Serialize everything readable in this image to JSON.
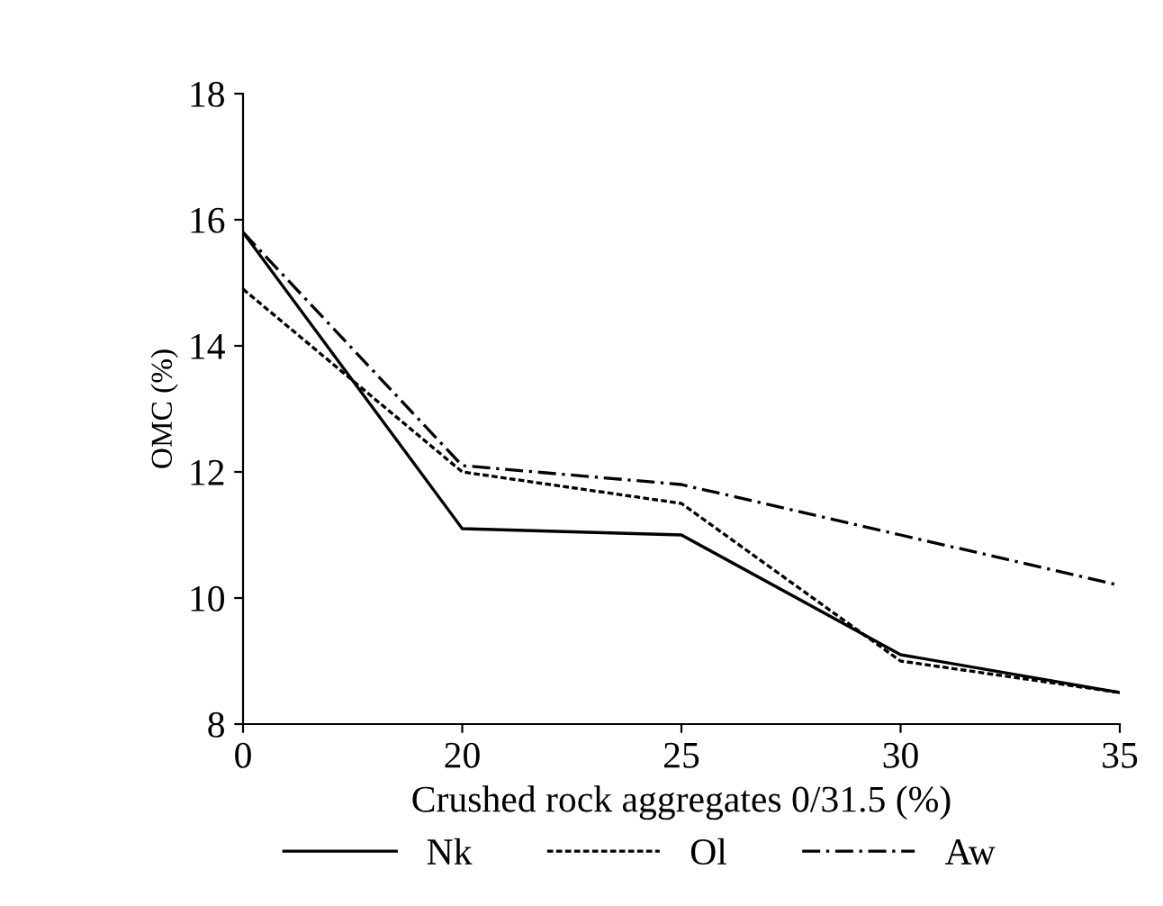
{
  "chart_data": {
    "type": "line",
    "xlabel": "Crushed rock aggregates 0/31.5 (%)",
    "ylabel": "OMC (%)",
    "categories": [
      "0",
      "20",
      "25",
      "30",
      "35"
    ],
    "series": [
      {
        "name": "Nk",
        "color": "#000000",
        "values": [
          15.8,
          11.1,
          11.0,
          9.1,
          8.5
        ],
        "line_style": "solid"
      },
      {
        "name": "Ol",
        "color": "#000000",
        "values": [
          14.9,
          12.0,
          11.5,
          9.0,
          8.5
        ],
        "line_style": "dotted"
      },
      {
        "name": "Aw",
        "color": "#000000",
        "values": [
          15.8,
          12.1,
          11.8,
          11.0,
          10.2
        ],
        "line_style": "dashdot"
      }
    ],
    "ylim": [
      8,
      18
    ],
    "yticks": [
      8,
      10,
      12,
      14,
      16,
      18
    ],
    "grid": false,
    "legend": "bottom",
    "marker": "none"
  }
}
